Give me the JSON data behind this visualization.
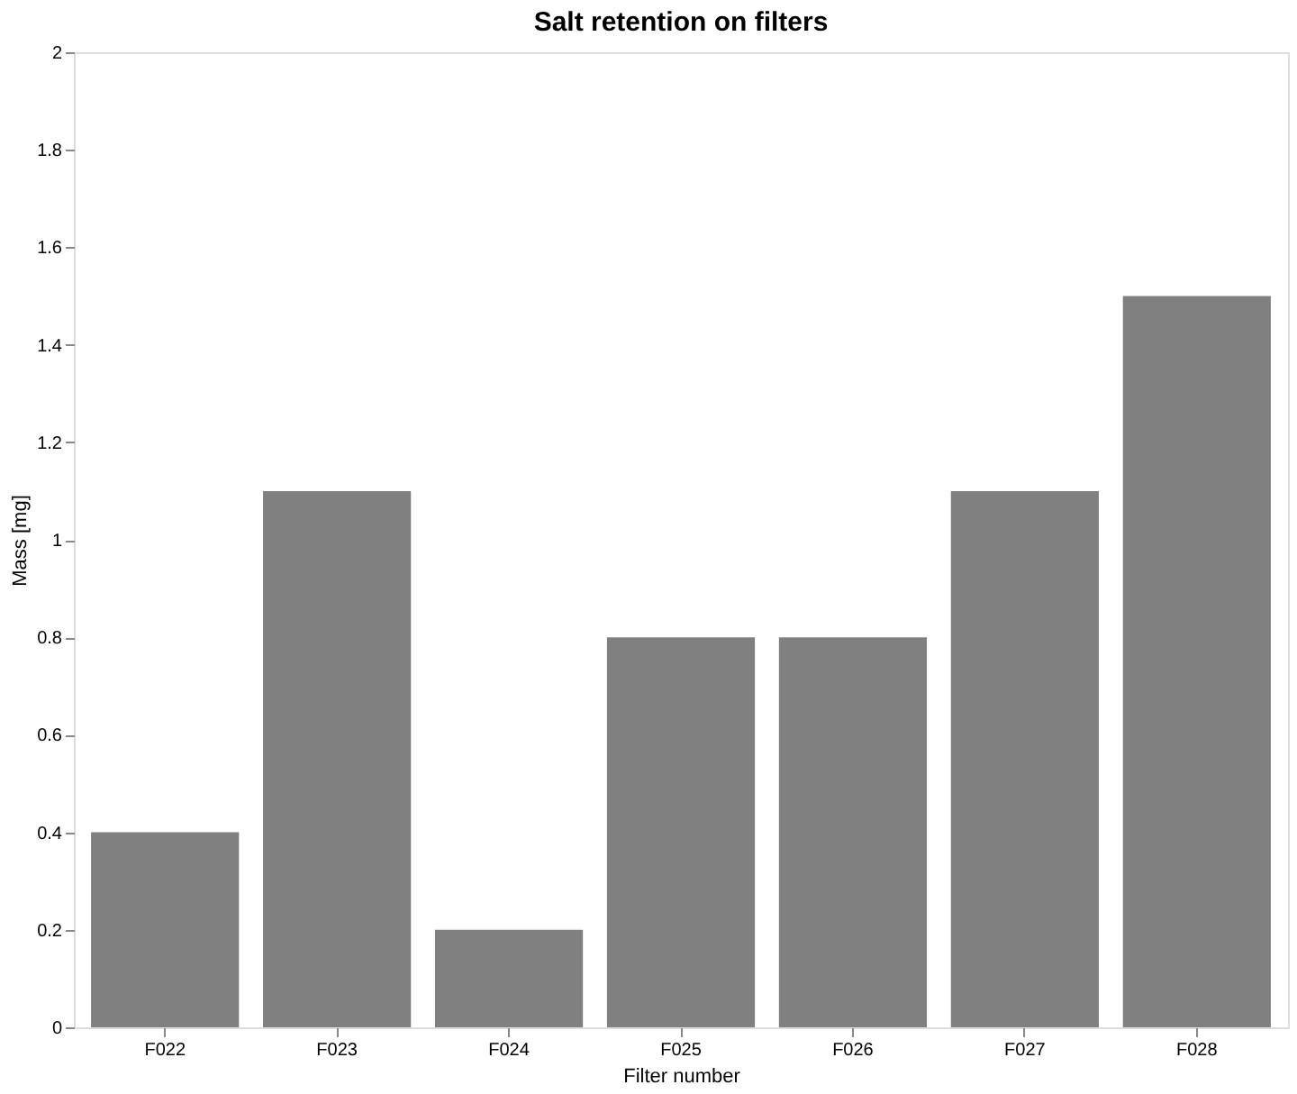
{
  "chart_data": {
    "type": "bar",
    "title": "Salt retention on filters",
    "xlabel": "Filter number",
    "ylabel": "Mass [mg]",
    "categories": [
      "F022",
      "F023",
      "F024",
      "F025",
      "F026",
      "F027",
      "F028"
    ],
    "values": [
      0.4,
      1.1,
      0.2,
      0.8,
      0.8,
      1.1,
      1.5
    ],
    "color": "#808080",
    "ylim": [
      0,
      2
    ],
    "yticks": [
      0,
      0.2,
      0.4,
      0.6,
      0.8,
      1,
      1.2,
      1.4,
      1.6,
      1.8,
      2
    ],
    "grid": false
  }
}
